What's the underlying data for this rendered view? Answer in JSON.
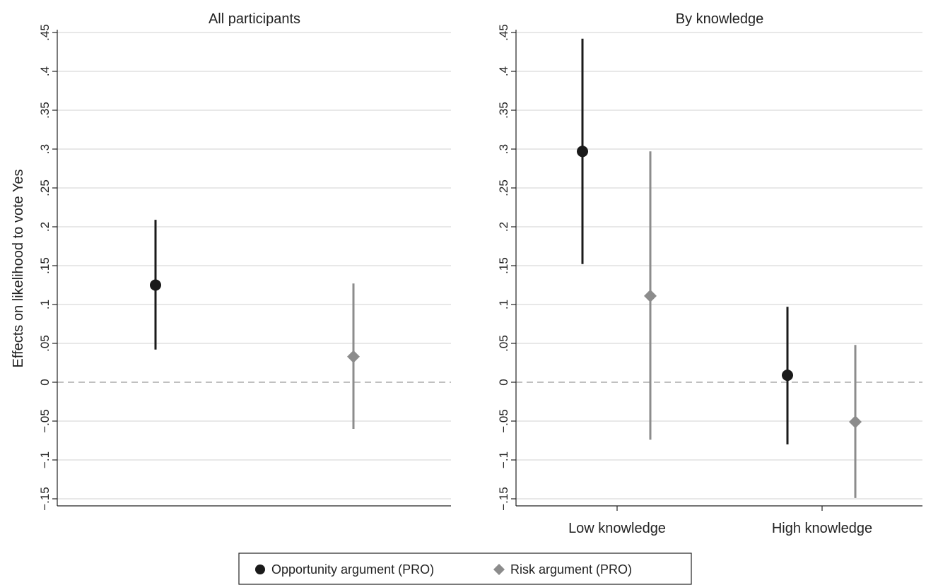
{
  "chart_data": [
    {
      "type": "scatter",
      "subtype": "coefficient-plot-with-confidence-intervals",
      "title": "All participants",
      "ylabel": "Effects on likelihood to vote Yes",
      "ylim": [
        -0.15,
        0.45
      ],
      "yticks": [
        -0.15,
        -0.1,
        -0.05,
        0,
        0.05,
        0.1,
        0.15,
        0.2,
        0.25,
        0.3,
        0.35,
        0.4,
        0.45
      ],
      "ytick_labels": [
        "−.15",
        "−.1",
        "−.05",
        "0",
        ".05",
        ".1",
        ".15",
        ".2",
        ".25",
        ".3",
        ".35",
        ".4",
        ".45"
      ],
      "grid": true,
      "reference_line": 0,
      "categories": [],
      "series": [
        {
          "name": "Opportunity argument (PRO)",
          "marker": "circle",
          "color": "#1a1a1a",
          "estimate": 0.125,
          "ci": [
            0.042,
            0.209
          ]
        },
        {
          "name": "Risk argument (PRO)",
          "marker": "diamond",
          "color": "#8c8c8c",
          "estimate": 0.033,
          "ci": [
            -0.06,
            0.127
          ]
        }
      ]
    },
    {
      "type": "scatter",
      "subtype": "coefficient-plot-with-confidence-intervals",
      "title": "By knowledge",
      "ylim": [
        -0.15,
        0.45
      ],
      "yticks": [
        -0.15,
        -0.1,
        -0.05,
        0,
        0.05,
        0.1,
        0.15,
        0.2,
        0.25,
        0.3,
        0.35,
        0.4,
        0.45
      ],
      "ytick_labels": [
        "−.15",
        "−.1",
        "−.05",
        "0",
        ".05",
        ".1",
        ".15",
        ".2",
        ".25",
        ".3",
        ".35",
        ".4",
        ".45"
      ],
      "grid": true,
      "reference_line": 0,
      "categories": [
        "Low knowledge",
        "High knowledge"
      ],
      "series": [
        {
          "name": "Opportunity argument (PRO)",
          "marker": "circle",
          "color": "#1a1a1a",
          "estimates": [
            0.297,
            0.009
          ],
          "ci": [
            [
              0.152,
              0.442
            ],
            [
              -0.08,
              0.097
            ]
          ]
        },
        {
          "name": "Risk argument (PRO)",
          "marker": "diamond",
          "color": "#8c8c8c",
          "estimates": [
            0.111,
            -0.051
          ],
          "ci": [
            [
              -0.074,
              0.297
            ],
            [
              -0.149,
              0.048
            ]
          ]
        }
      ]
    }
  ],
  "legend": {
    "position": "bottom-center",
    "items": [
      {
        "label": "Opportunity argument (PRO)",
        "marker": "circle",
        "color": "#1a1a1a"
      },
      {
        "label": "Risk argument (PRO)",
        "marker": "diamond",
        "color": "#8c8c8c"
      }
    ]
  },
  "colors": {
    "gridline": "#d0d0d0",
    "zero_line": "#9a9a9a",
    "axis": "#222222"
  }
}
